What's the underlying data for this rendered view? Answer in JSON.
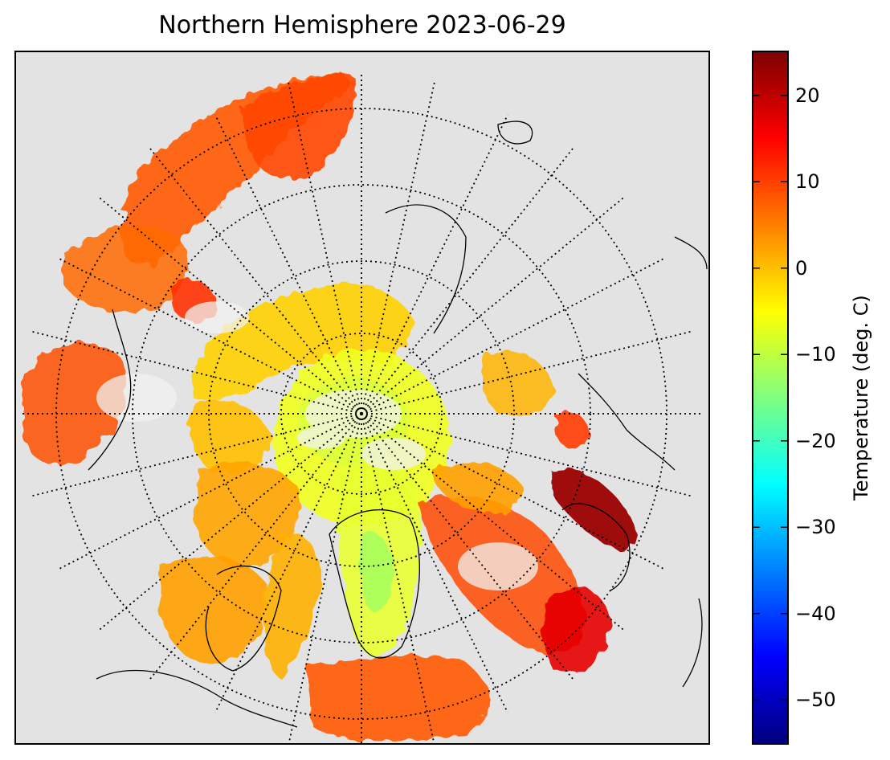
{
  "title": "Northern Hemisphere 2023-06-29",
  "colorbar": {
    "label": "Temperature (deg. C)",
    "min": -55,
    "max": 25,
    "ticks": [
      {
        "value": 20,
        "label": "20"
      },
      {
        "value": 10,
        "label": "10"
      },
      {
        "value": 0,
        "label": "0"
      },
      {
        "value": -10,
        "label": "−10"
      },
      {
        "value": -20,
        "label": "−20"
      },
      {
        "value": -30,
        "label": "−30"
      },
      {
        "value": -40,
        "label": "−40"
      },
      {
        "value": -50,
        "label": "−50"
      }
    ],
    "colors": [
      "#00007f",
      "#0000ff",
      "#007fff",
      "#00ffff",
      "#7fff7f",
      "#ffff00",
      "#ff7f00",
      "#ff0000",
      "#7f0000"
    ]
  },
  "map": {
    "projection": "north-polar-stereographic",
    "background_color": "#e3e3e3",
    "graticule": "dotted",
    "coastlines": "black"
  }
}
